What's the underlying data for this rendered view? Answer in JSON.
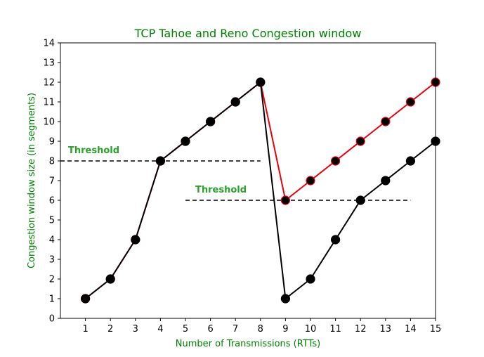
{
  "chart_data": {
    "type": "line",
    "title": "TCP Tahoe and Reno Congestion window",
    "xlabel": "Number of Transmissions (RTTs)",
    "ylabel": "Congestion window size (in segments)",
    "xlim": [
      0,
      15
    ],
    "ylim": [
      0,
      14
    ],
    "xticks": [
      1,
      2,
      3,
      4,
      5,
      6,
      7,
      8,
      9,
      10,
      11,
      12,
      13,
      14,
      15
    ],
    "yticks": [
      0,
      1,
      2,
      3,
      4,
      5,
      6,
      7,
      8,
      9,
      10,
      11,
      12,
      13,
      14
    ],
    "grid": false,
    "series": [
      {
        "color": "#e8000b",
        "x": [
          1,
          2,
          3,
          4,
          5,
          6,
          7,
          8,
          9,
          10,
          11,
          12,
          13,
          14,
          15
        ],
        "y": [
          1,
          2,
          4,
          8,
          9,
          10,
          11,
          12,
          6,
          7,
          8,
          9,
          10,
          11,
          12
        ]
      },
      {
        "color": "#000000",
        "x": [
          1,
          2,
          3,
          4,
          5,
          6,
          7,
          8,
          9,
          10,
          11,
          12,
          13,
          14,
          15
        ],
        "y": [
          1,
          2,
          4,
          8,
          9,
          10,
          11,
          12,
          1,
          2,
          4,
          6,
          7,
          8,
          9
        ]
      }
    ],
    "thresholds": [
      {
        "label": "Threshold",
        "y": 8,
        "x_start": 0,
        "x_end": 8
      },
      {
        "label": "Threshold",
        "y": 6,
        "x_start": 5,
        "x_end": 14
      }
    ],
    "text_color": "#008000",
    "annotation_color": "#2ca02c"
  }
}
